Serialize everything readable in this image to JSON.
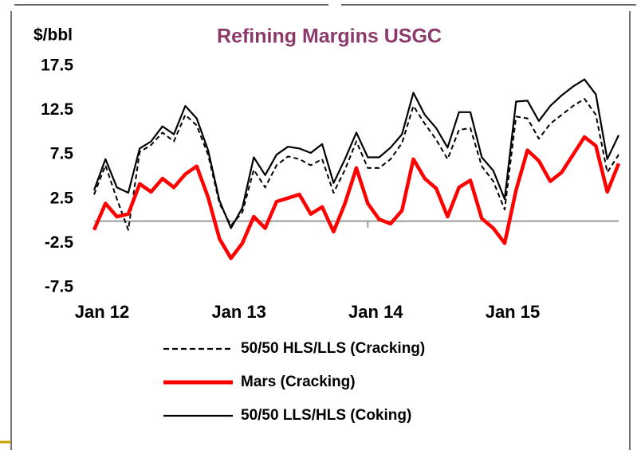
{
  "chart_data": {
    "type": "line",
    "title": "Refining Margins USGC",
    "y_label": "$/bbl",
    "categories": [
      "Jan 12",
      null,
      null,
      null,
      null,
      null,
      null,
      null,
      null,
      null,
      null,
      null,
      "Jan 13",
      null,
      null,
      null,
      null,
      null,
      null,
      null,
      null,
      null,
      null,
      null,
      "Jan 14",
      null,
      null,
      null,
      null,
      null,
      null,
      null,
      null,
      null,
      null,
      null,
      "Jan 15",
      null,
      null,
      null,
      null,
      null,
      null,
      null,
      null,
      null,
      null
    ],
    "ylim": [
      -7.5,
      17.5
    ],
    "yticks": [
      17.5,
      12.5,
      7.5,
      2.5,
      -2.5,
      -7.5
    ],
    "legend": "bottom",
    "series": [
      {
        "name": "50/50 HLS/LLS  (Cracking)",
        "color": "#000000",
        "line_style": "dashed",
        "values": [
          3.0,
          6.3,
          2.5,
          -1.0,
          7.8,
          8.6,
          10.0,
          9.0,
          12.0,
          10.8,
          7.5,
          2.0,
          -0.5,
          1.0,
          5.8,
          3.8,
          6.3,
          7.3,
          7.0,
          6.3,
          7.0,
          3.2,
          5.8,
          9.0,
          6.0,
          6.0,
          7.0,
          8.8,
          13.0,
          11.0,
          9.2,
          7.0,
          10.3,
          10.5,
          6.2,
          4.5,
          1.3,
          11.8,
          11.6,
          9.3,
          11.0,
          12.0,
          13.0,
          13.8,
          12.0,
          5.5,
          7.5
        ]
      },
      {
        "name": "Mars  (Cracking)",
        "color": "#ff0000",
        "line_style": "solid",
        "values": [
          -1.0,
          2.0,
          0.5,
          0.8,
          4.2,
          3.3,
          4.8,
          3.8,
          5.3,
          6.2,
          2.7,
          -2.0,
          -4.2,
          -2.5,
          0.5,
          -0.8,
          2.2,
          2.6,
          3.0,
          0.8,
          1.6,
          -1.2,
          2.0,
          6.0,
          2.0,
          0.2,
          -0.3,
          1.2,
          7.0,
          4.8,
          3.7,
          0.5,
          3.8,
          4.6,
          0.3,
          -0.8,
          -2.5,
          3.5,
          8.0,
          6.8,
          4.5,
          5.5,
          7.5,
          9.5,
          8.5,
          3.3,
          6.5
        ]
      },
      {
        "name": "50/50 LLS/HLS  (Coking)",
        "color": "#000000",
        "line_style": "solid",
        "values": [
          3.5,
          7.0,
          3.8,
          3.2,
          8.2,
          9.0,
          10.7,
          9.8,
          13.0,
          11.6,
          8.0,
          2.3,
          -0.8,
          1.5,
          7.2,
          5.2,
          7.5,
          8.4,
          8.2,
          7.7,
          8.7,
          4.3,
          7.0,
          10.0,
          7.2,
          7.2,
          8.3,
          9.8,
          14.5,
          12.0,
          10.5,
          8.3,
          12.3,
          12.3,
          7.2,
          5.7,
          2.5,
          13.5,
          13.6,
          11.3,
          13.0,
          14.2,
          15.2,
          16.0,
          14.3,
          7.0,
          9.7
        ]
      }
    ]
  }
}
